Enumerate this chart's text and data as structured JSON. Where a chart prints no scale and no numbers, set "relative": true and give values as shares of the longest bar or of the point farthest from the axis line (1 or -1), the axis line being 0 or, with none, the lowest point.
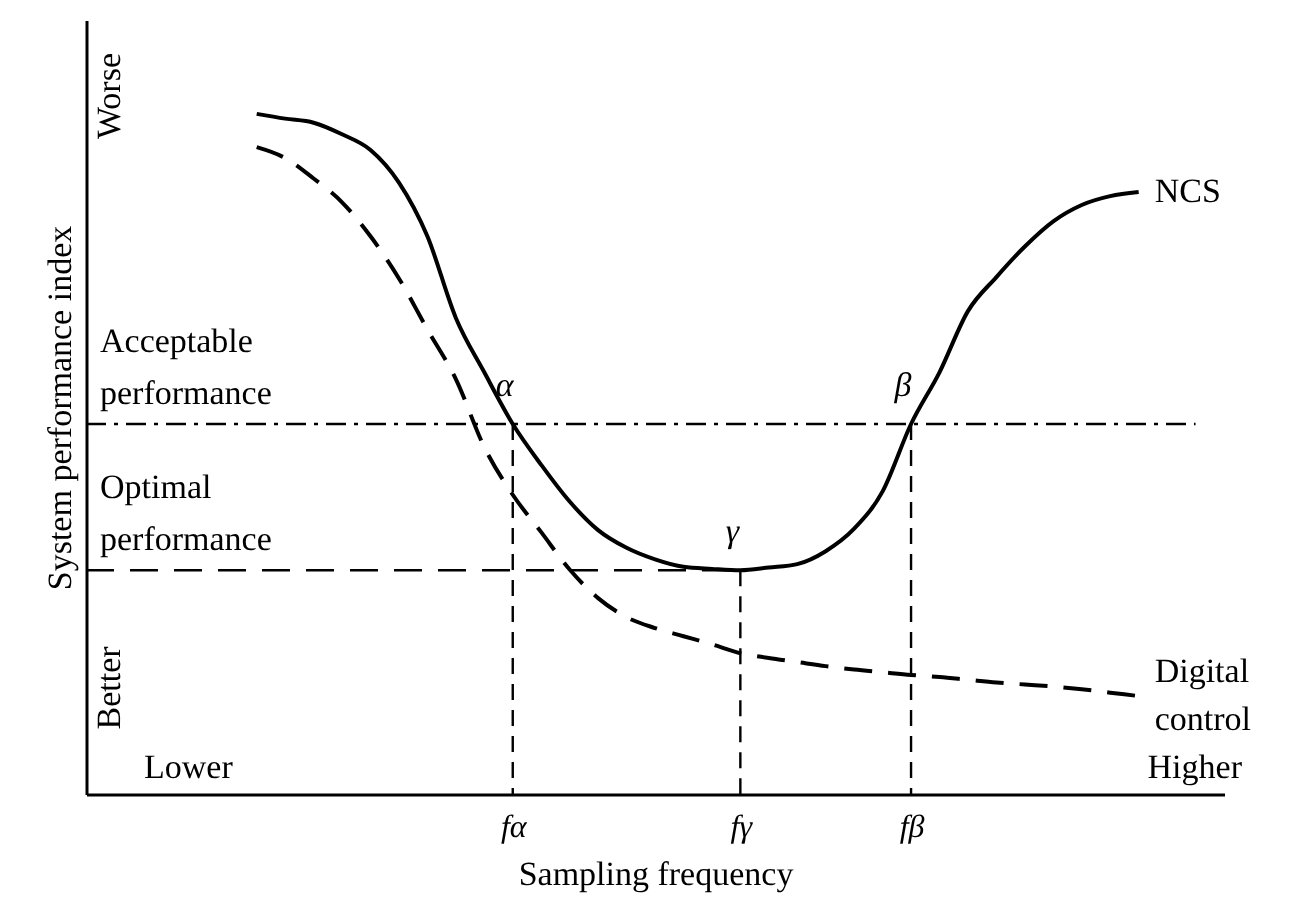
{
  "chart_data": {
    "type": "line",
    "relative": true,
    "xlabel": "Sampling frequency",
    "ylabel": "System performance index",
    "legend": false,
    "grid": false,
    "marker": "none",
    "categories": [
      null,
      null,
      null,
      null,
      null,
      null,
      null,
      null,
      null,
      null,
      null,
      null,
      null,
      null,
      null,
      "fα",
      null,
      null,
      null,
      null,
      null,
      null,
      null,
      "fγ",
      null,
      null,
      null,
      null,
      null,
      "fβ",
      null,
      null,
      null,
      null,
      null,
      null,
      null,
      null,
      null,
      null,
      null
    ],
    "series": [
      {
        "name": "NCS",
        "color": "#000000",
        "line_style": "solid",
        "values": [
          null,
          null,
          null,
          null,
          null,
          null,
          1.0,
          0.993,
          0.987,
          0.97,
          0.947,
          0.899,
          0.82,
          0.7,
          0.62,
          0.544,
          0.484,
          0.43,
          0.388,
          0.362,
          0.345,
          0.334,
          0.331,
          0.329,
          0.333,
          0.338,
          0.357,
          0.39,
          0.445,
          0.544,
          0.62,
          0.71,
          0.76,
          0.805,
          0.842,
          0.866,
          0.879,
          0.885,
          null,
          null,
          null
        ]
      },
      {
        "name": "Digital control",
        "color": "#000000",
        "line_style": "dashed",
        "values": [
          null,
          null,
          null,
          null,
          null,
          null,
          0.951,
          0.935,
          0.905,
          0.87,
          0.82,
          0.758,
          0.683,
          0.61,
          0.51,
          0.44,
          0.385,
          0.33,
          0.288,
          0.26,
          0.244,
          0.232,
          0.22,
          0.207,
          0.2,
          0.194,
          0.188,
          0.183,
          0.179,
          0.175,
          0.172,
          0.168,
          0.164,
          0.161,
          0.158,
          0.154,
          0.149,
          0.144,
          null,
          null,
          null
        ]
      }
    ],
    "ref_lines": [
      {
        "axis": "y",
        "value": 0.544,
        "label": "Acceptable performance",
        "line_style": "dashdot",
        "color": "#000000"
      },
      {
        "axis": "y",
        "value": 0.329,
        "label": "Optimal performance",
        "line_style": "dashed",
        "color": "#000000"
      }
    ],
    "annotations": [
      {
        "text": "α",
        "x": "fα",
        "y": 0.544
      },
      {
        "text": "γ",
        "x": "fγ",
        "y": 0.329
      },
      {
        "text": "β",
        "x": "fβ",
        "y": 0.544
      },
      "Worse",
      "Better",
      "Lower",
      "Higher"
    ]
  }
}
